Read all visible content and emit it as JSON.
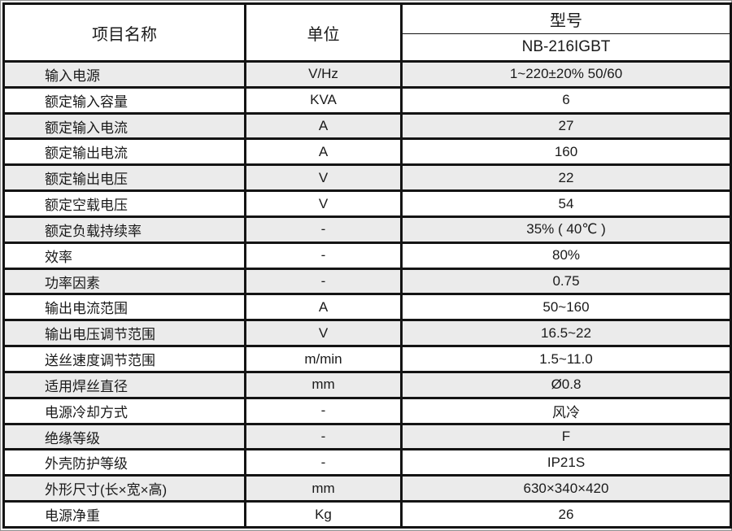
{
  "table": {
    "headers": {
      "item": "项目名称",
      "unit": "单位",
      "model": "型号"
    },
    "model_number": "NB-216IGBT",
    "rows": [
      {
        "item": "输入电源",
        "unit": "V/Hz",
        "value": "1~220±20% 50/60"
      },
      {
        "item": "额定输入容量",
        "unit": "KVA",
        "value": "6"
      },
      {
        "item": "额定输入电流",
        "unit": "A",
        "value": "27"
      },
      {
        "item": "额定输出电流",
        "unit": "A",
        "value": "160"
      },
      {
        "item": "额定输出电压",
        "unit": "V",
        "value": "22"
      },
      {
        "item": "额定空载电压",
        "unit": "V",
        "value": "54"
      },
      {
        "item": "额定负载持续率",
        "unit": "-",
        "value": "35% ( 40℃ )"
      },
      {
        "item": "效率",
        "unit": "-",
        "value": "80%"
      },
      {
        "item": "功率因素",
        "unit": "-",
        "value": "0.75"
      },
      {
        "item": "输出电流范围",
        "unit": "A",
        "value": "50~160"
      },
      {
        "item": "输出电压调节范围",
        "unit": "V",
        "value": "16.5~22"
      },
      {
        "item": "送丝速度调节范围",
        "unit": "m/min",
        "value": "1.5~11.0"
      },
      {
        "item": "适用焊丝直径",
        "unit": "mm",
        "value": "Ø0.8"
      },
      {
        "item": "电源冷却方式",
        "unit": "-",
        "value": "风冷"
      },
      {
        "item": "绝缘等级",
        "unit": "-",
        "value": "F"
      },
      {
        "item": "外壳防护等级",
        "unit": "-",
        "value": "IP21S"
      },
      {
        "item": "外形尺寸(长×宽×高)",
        "unit": "mm",
        "value": "630×340×420"
      },
      {
        "item": "电源净重",
        "unit": "Kg",
        "value": "26"
      }
    ],
    "colors": {
      "row_shade": "#ebebeb",
      "border": "#141414"
    }
  }
}
